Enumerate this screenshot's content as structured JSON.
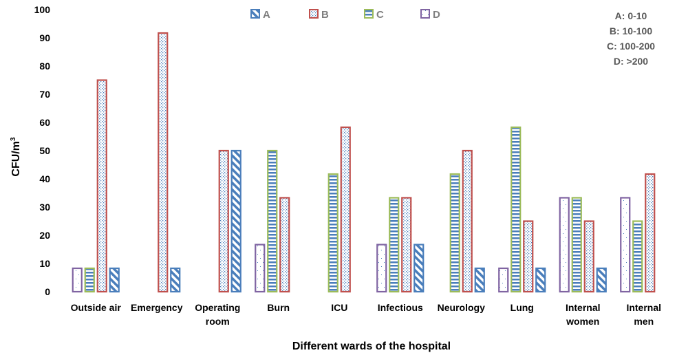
{
  "chart_data": {
    "type": "bar",
    "title": "",
    "xlabel": "Different wards of the hospital",
    "ylabel": "CFU/m",
    "ylabel_sup": "3",
    "ylim": [
      0,
      100
    ],
    "yticks": [
      0,
      10,
      20,
      30,
      40,
      50,
      60,
      70,
      80,
      90,
      100
    ],
    "grid": false,
    "legend_position": "top",
    "categories": [
      [
        "Outside air"
      ],
      [
        "Emergency"
      ],
      [
        "Operating",
        "room"
      ],
      [
        "Burn"
      ],
      [
        "ICU"
      ],
      [
        "Infectious"
      ],
      [
        "Neurology"
      ],
      [
        "Lung"
      ],
      [
        "Internal",
        "women"
      ],
      [
        "Internal",
        "men"
      ]
    ],
    "bar_order": [
      "D",
      "C",
      "B",
      "A"
    ],
    "series": [
      {
        "name": "A",
        "color": "#4a7ebb",
        "pattern": "diagonal-stripes",
        "values": [
          8.3,
          8.3,
          50,
          0,
          0,
          16.7,
          8.3,
          8.3,
          8.3,
          0
        ]
      },
      {
        "name": "B",
        "color": "#c0504d",
        "pattern": "dots",
        "values": [
          75,
          91.7,
          50,
          33.3,
          58.3,
          33.3,
          50,
          25,
          25,
          41.7
        ]
      },
      {
        "name": "C",
        "color": "#9bbb59",
        "pattern": "horizontal-stripes",
        "values": [
          8.3,
          0,
          0,
          50,
          41.7,
          33.3,
          41.7,
          58.3,
          33.3,
          25
        ]
      },
      {
        "name": "D",
        "color": "#8064a2",
        "pattern": "sparse-dots",
        "values": [
          8.3,
          0,
          0,
          16.7,
          0,
          16.7,
          0,
          8.3,
          33.3,
          33.3
        ]
      }
    ],
    "range_legend": [
      "A: 0-10",
      "B: 10-100",
      "C: 100-200",
      "D: >200"
    ]
  }
}
